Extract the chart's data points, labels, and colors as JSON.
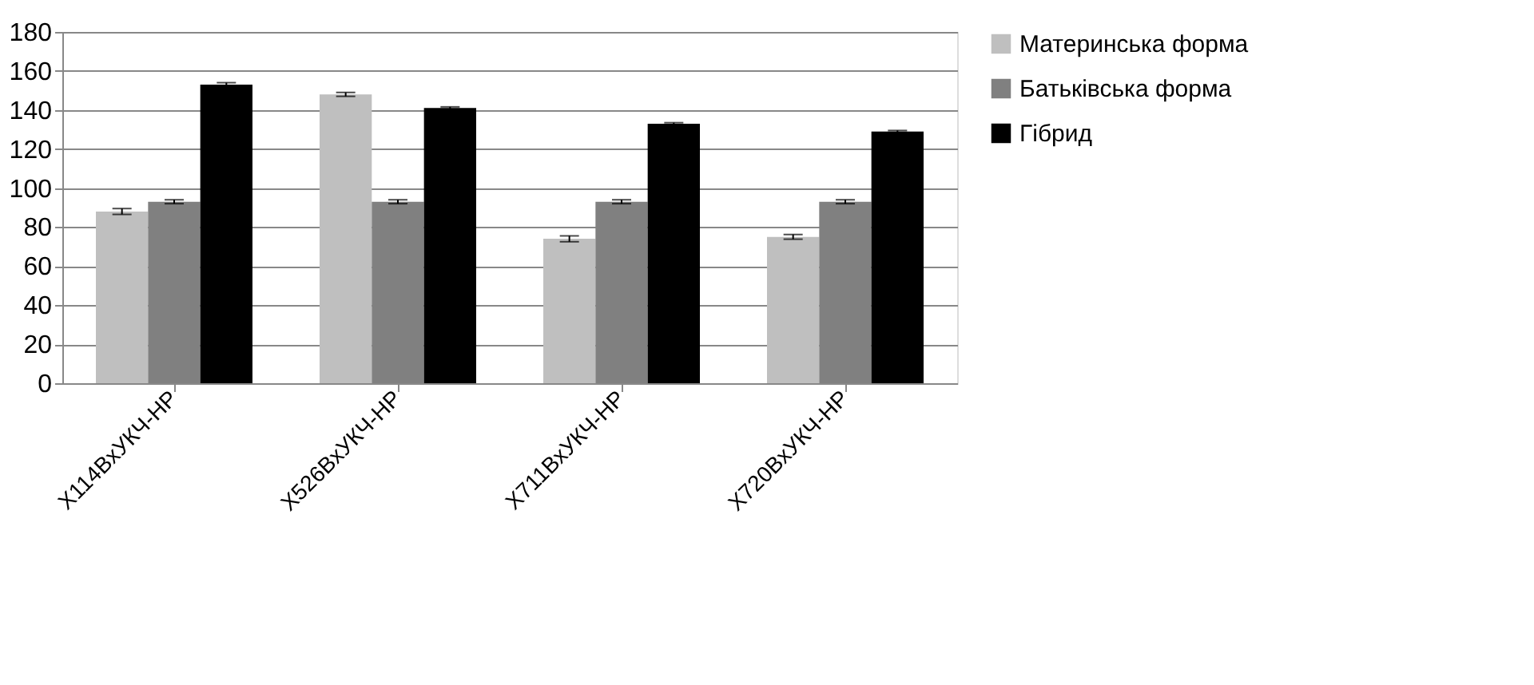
{
  "chart_data": {
    "type": "bar",
    "categories": [
      "X114BxУКЧ-НР",
      "X526BxУКЧ-НР",
      "X711BxУКЧ-НР",
      "X720BxУКЧ-НР"
    ],
    "series": [
      {
        "name": "Материнська форма",
        "color": "#bfbfbf",
        "values": [
          88,
          148,
          74,
          75
        ],
        "errors": [
          1.5,
          1,
          1.5,
          1.2
        ]
      },
      {
        "name": "Батьківська форма",
        "color": "#808080",
        "values": [
          93,
          93,
          93,
          93
        ],
        "errors": [
          1,
          1,
          1,
          1
        ]
      },
      {
        "name": "Гібрид",
        "color": "#000000",
        "values": [
          153,
          141,
          133,
          129
        ],
        "errors": [
          1,
          0.6,
          0.5,
          0.5
        ]
      }
    ],
    "ylim": [
      0,
      180
    ],
    "yticks": [
      0,
      20,
      40,
      60,
      80,
      100,
      120,
      140,
      160,
      180
    ],
    "grid": "y",
    "legend": "right"
  }
}
